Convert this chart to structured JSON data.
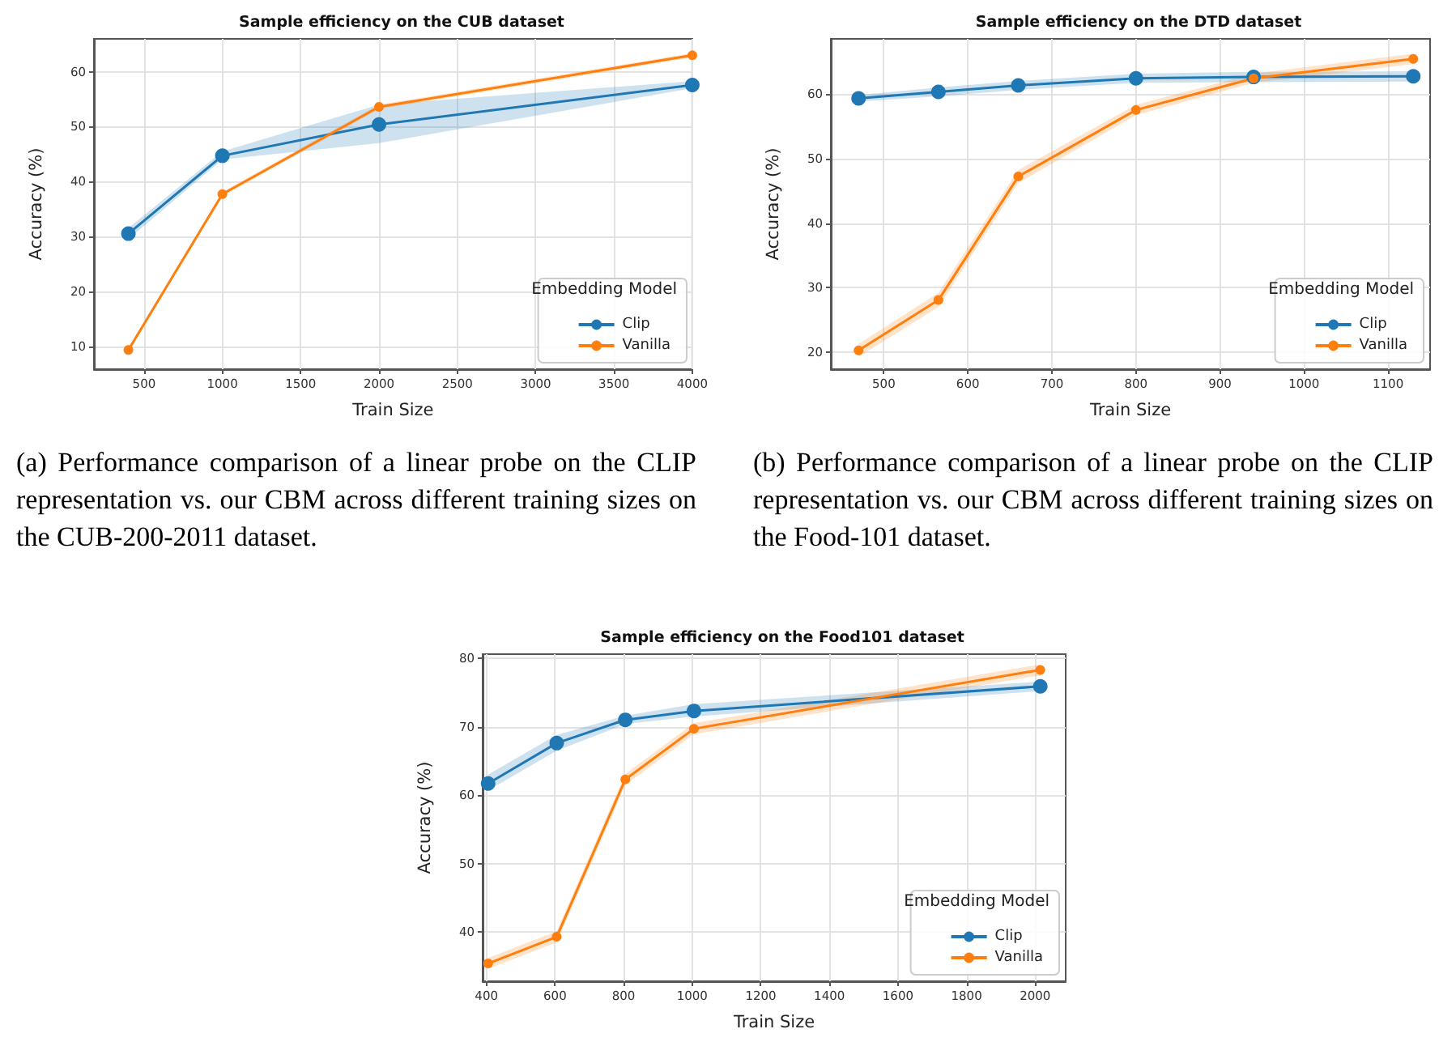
{
  "chart_data": [
    {
      "type": "line",
      "title": "Sample efficiency on the CUB dataset",
      "xlabel": "Train Size",
      "ylabel": "Accuracy (%)",
      "x": [
        400,
        1000,
        2000,
        4000
      ],
      "series": [
        {
          "name": "Clip",
          "color": "#1f77b4",
          "values": [
            30.5,
            44.7,
            50.4,
            57.6
          ],
          "lower": [
            29.5,
            44.0,
            47.0,
            57.0
          ],
          "upper": [
            31.5,
            45.5,
            54.0,
            58.3
          ]
        },
        {
          "name": "Vanilla",
          "color": "#ff7f0e",
          "values": [
            9.3,
            37.7,
            53.6,
            63.0
          ],
          "lower": [
            8.9,
            37.3,
            53.2,
            62.6
          ],
          "upper": [
            9.7,
            38.1,
            54.0,
            63.4
          ]
        }
      ],
      "xlim": [
        180,
        4000
      ],
      "xticks": [
        500,
        1000,
        1500,
        2000,
        2500,
        3000,
        3500,
        4000
      ],
      "ylim": [
        5.8,
        66
      ],
      "yticks": [
        10,
        20,
        30,
        40,
        50,
        60
      ],
      "grid": true,
      "legend": "bottom right",
      "legend_title": "Embedding Model",
      "marker": "circle",
      "annotations": [
        "(a) Performance comparison of a linear probe on the CLIP representation vs. our CBM across different training sizes on the CUB-200-2011 dataset."
      ]
    },
    {
      "type": "line",
      "title": "Sample efficiency on the DTD dataset",
      "xlabel": "Train Size",
      "ylabel": "Accuracy (%)",
      "x": [
        470,
        565,
        660,
        800,
        940,
        1130
      ],
      "series": [
        {
          "name": "Clip",
          "color": "#1f77b4",
          "values": [
            59.3,
            60.3,
            61.3,
            62.4,
            62.6,
            62.7
          ],
          "lower": [
            58.8,
            59.6,
            60.6,
            61.7,
            61.8,
            61.9
          ],
          "upper": [
            59.8,
            61.0,
            62.0,
            63.1,
            63.4,
            63.5
          ]
        },
        {
          "name": "Vanilla",
          "color": "#ff7f0e",
          "values": [
            20.3,
            28.1,
            47.2,
            57.5,
            62.4,
            65.4
          ],
          "lower": [
            19.3,
            27.0,
            46.2,
            56.7,
            61.7,
            64.6
          ],
          "upper": [
            21.3,
            29.2,
            48.2,
            58.3,
            63.1,
            66.2
          ]
        }
      ],
      "xlim": [
        437,
        1150
      ],
      "xticks": [
        500,
        600,
        700,
        800,
        900,
        1000,
        1100
      ],
      "ylim": [
        17.4,
        68.5
      ],
      "yticks": [
        20,
        30,
        40,
        50,
        60
      ],
      "grid": true,
      "legend": "bottom right",
      "legend_title": "Embedding Model",
      "marker": "circle",
      "annotations": [
        "(b) Performance comparison of a linear probe on the CLIP representation vs. our CBM across different training sizes on the Food-101 dataset."
      ]
    },
    {
      "type": "line",
      "title": "Sample efficiency on the Food101 dataset",
      "xlabel": "Train Size",
      "ylabel": "Accuracy (%)",
      "x": [
        405,
        605,
        805,
        1005,
        2015
      ],
      "series": [
        {
          "name": "Clip",
          "color": "#1f77b4",
          "values": [
            61.7,
            67.6,
            71.0,
            72.3,
            75.9
          ],
          "lower": [
            60.7,
            66.5,
            70.4,
            71.5,
            75.2
          ],
          "upper": [
            63.0,
            68.8,
            71.6,
            73.3,
            76.6
          ]
        },
        {
          "name": "Vanilla",
          "color": "#ff7f0e",
          "values": [
            35.4,
            39.3,
            62.3,
            69.7,
            78.3
          ],
          "lower": [
            34.6,
            38.5,
            61.5,
            68.9,
            77.5
          ],
          "upper": [
            36.2,
            40.1,
            63.1,
            70.5,
            79.1
          ]
        }
      ],
      "xlim": [
        389,
        2089
      ],
      "xticks": [
        400,
        600,
        800,
        1000,
        1200,
        1400,
        1600,
        1800,
        2000
      ],
      "ylim": [
        32.8,
        80.6
      ],
      "yticks": [
        40,
        50,
        60,
        70,
        80
      ],
      "grid": true,
      "legend": "bottom right",
      "legend_title": "Embedding Model",
      "marker": "circle"
    }
  ]
}
